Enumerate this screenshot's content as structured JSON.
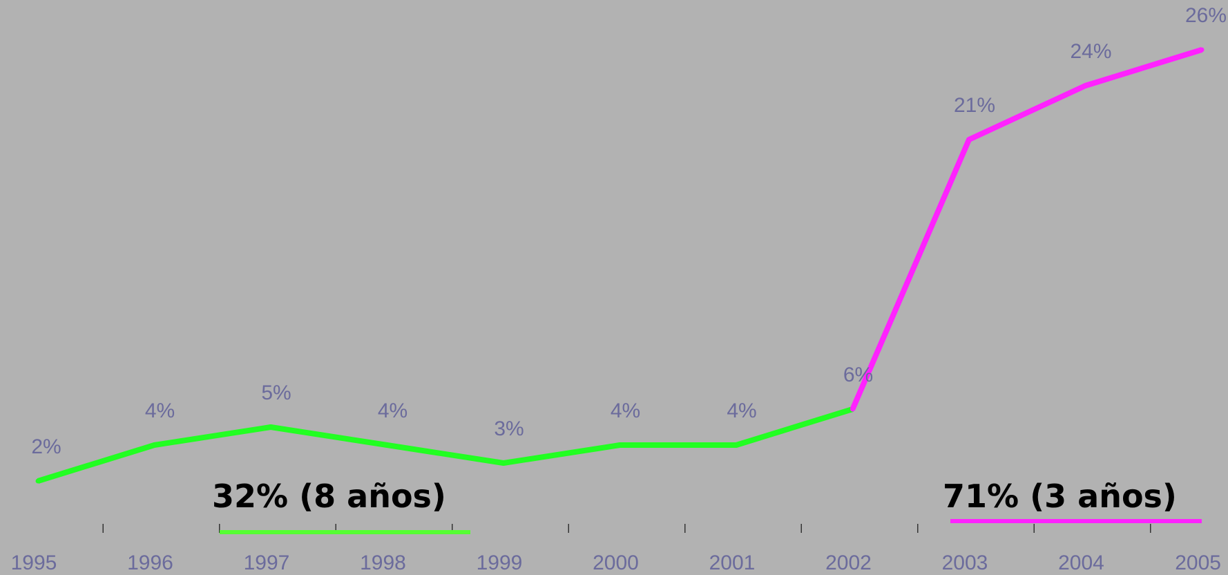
{
  "chart_data": {
    "type": "line",
    "title": "",
    "xlabel": "",
    "ylabel": "",
    "x": [
      "1995",
      "1996",
      "1997",
      "1998",
      "1999",
      "2000",
      "2001",
      "2002",
      "2003",
      "2004",
      "2005"
    ],
    "ylim": [
      0,
      30
    ],
    "series": [
      {
        "color": "#22ff22",
        "x": [
          "1995",
          "1996",
          "1997",
          "1998",
          "1999",
          "2000",
          "2001",
          "2002"
        ],
        "values": [
          2,
          4,
          5,
          4,
          3,
          4,
          4,
          6
        ]
      },
      {
        "color": "#ff22ff",
        "x": [
          "2002",
          "2003",
          "2004",
          "2005"
        ],
        "values": [
          6,
          21,
          24,
          26
        ]
      }
    ],
    "data_labels": [
      "2%",
      "4%",
      "5%",
      "4%",
      "3%",
      "4%",
      "4%",
      "6%",
      "21%",
      "24%",
      "26%"
    ],
    "annotations": [
      {
        "text": "32% (8 años)",
        "color": "#55ff33"
      },
      {
        "text": "71% (3 años)",
        "color": "#ff22ff"
      }
    ],
    "grid": false,
    "legend": "none"
  }
}
